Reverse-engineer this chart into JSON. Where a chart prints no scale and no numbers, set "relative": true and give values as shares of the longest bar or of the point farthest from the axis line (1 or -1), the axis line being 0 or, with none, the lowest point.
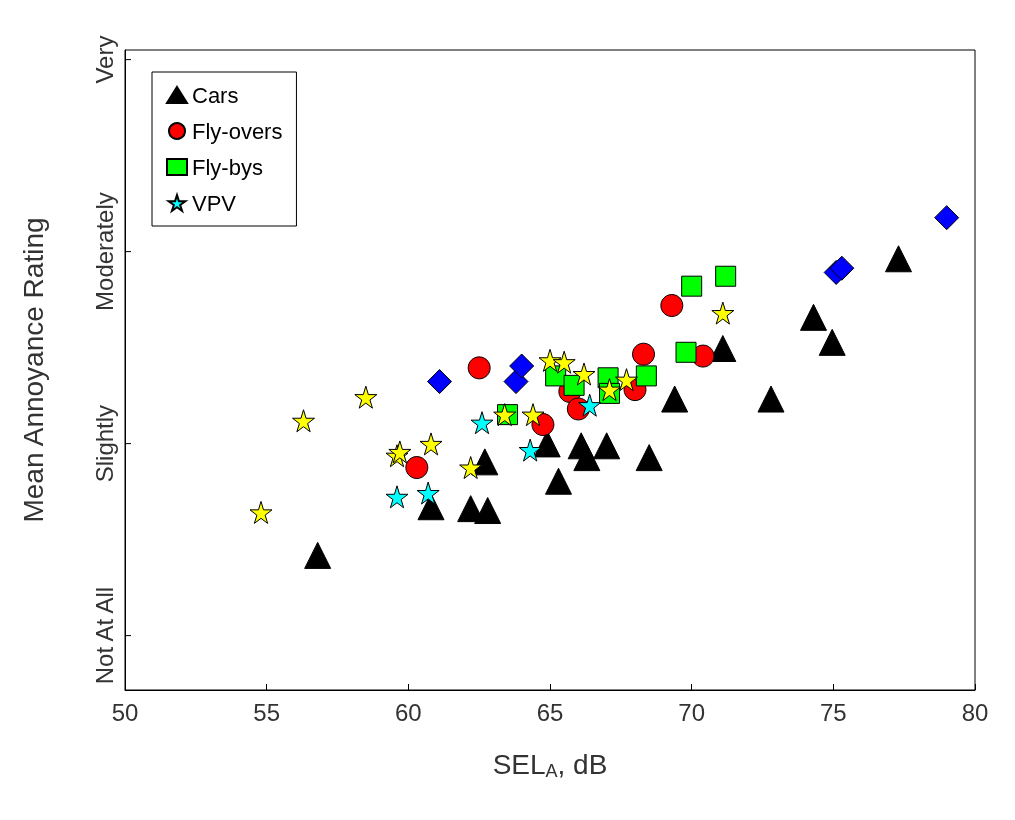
{
  "chart_data": {
    "type": "scatter",
    "xlabel": "SEL$_{A}$, dB",
    "ylabel": "Mean Annoyance Rating",
    "relative": true,
    "xlim": [
      50,
      80
    ],
    "xticks": [
      50,
      55,
      60,
      65,
      70,
      75,
      80
    ],
    "annotations": [
      "Not At All",
      "Slightly",
      "Moderately",
      "Very"
    ],
    "grid": false,
    "legend": "top left",
    "series": [
      {
        "name": "Cars",
        "color": "#000000",
        "marker": "triangle",
        "x": [
          56.8,
          60.8,
          62.2,
          62.8,
          62.7,
          64.9,
          65.3,
          66.1,
          66.3,
          67.0,
          68.5,
          69.4,
          71.1,
          72.8,
          74.3,
          74.96,
          77.3
        ],
        "values": [
          0.285,
          0.388,
          0.384,
          0.38,
          0.483,
          0.521,
          0.442,
          0.517,
          0.492,
          0.517,
          0.492,
          0.616,
          0.723,
          0.616,
          0.789,
          0.736,
          0.913
        ]
      },
      {
        "name": "Fly-overs",
        "color": "#ff0000",
        "marker": "circle",
        "x": [
          60.3,
          62.5,
          64.75,
          65.7,
          66.0,
          68.0,
          68.3,
          69.3,
          70.4
        ],
        "values": [
          0.471,
          0.682,
          0.562,
          0.632,
          0.595,
          0.636,
          0.711,
          0.814,
          0.707
        ]
      },
      {
        "name": "Fly-bys",
        "color": "#00ff00",
        "marker": "square",
        "x": [
          63.5,
          65.2,
          65.85,
          67.05,
          67.1,
          68.4,
          69.8,
          70.0,
          71.2
        ],
        "values": [
          0.583,
          0.665,
          0.645,
          0.661,
          0.628,
          0.665,
          0.715,
          0.855,
          0.876
        ]
      },
      {
        "color": "#0000ff",
        "marker": "diamond",
        "x": [
          61.1,
          63.8,
          64.0,
          75.1,
          75.3,
          79.0
        ],
        "values": [
          0.653,
          0.653,
          0.686,
          0.884,
          0.893,
          1
        ]
      },
      {
        "color": "#ffff00",
        "marker": "star",
        "x": [
          54.8,
          56.3,
          58.5,
          59.6,
          59.7,
          60.8,
          62.2,
          63.4,
          64.4,
          65.0,
          65.5,
          66.2,
          67.1,
          67.7,
          71.1
        ],
        "values": [
          0.376,
          0.57,
          0.62,
          0.496,
          0.504,
          0.521,
          0.471,
          0.583,
          0.583,
          0.698,
          0.694,
          0.669,
          0.636,
          0.657,
          0.798
        ]
      },
      {
        "name": "VPV",
        "color": "#00ffff",
        "marker": "star",
        "x": [
          59.6,
          60.7,
          62.6,
          64.3,
          66.4
        ],
        "values": [
          0.409,
          0.417,
          0.566,
          0.508,
          0.603
        ]
      }
    ]
  }
}
